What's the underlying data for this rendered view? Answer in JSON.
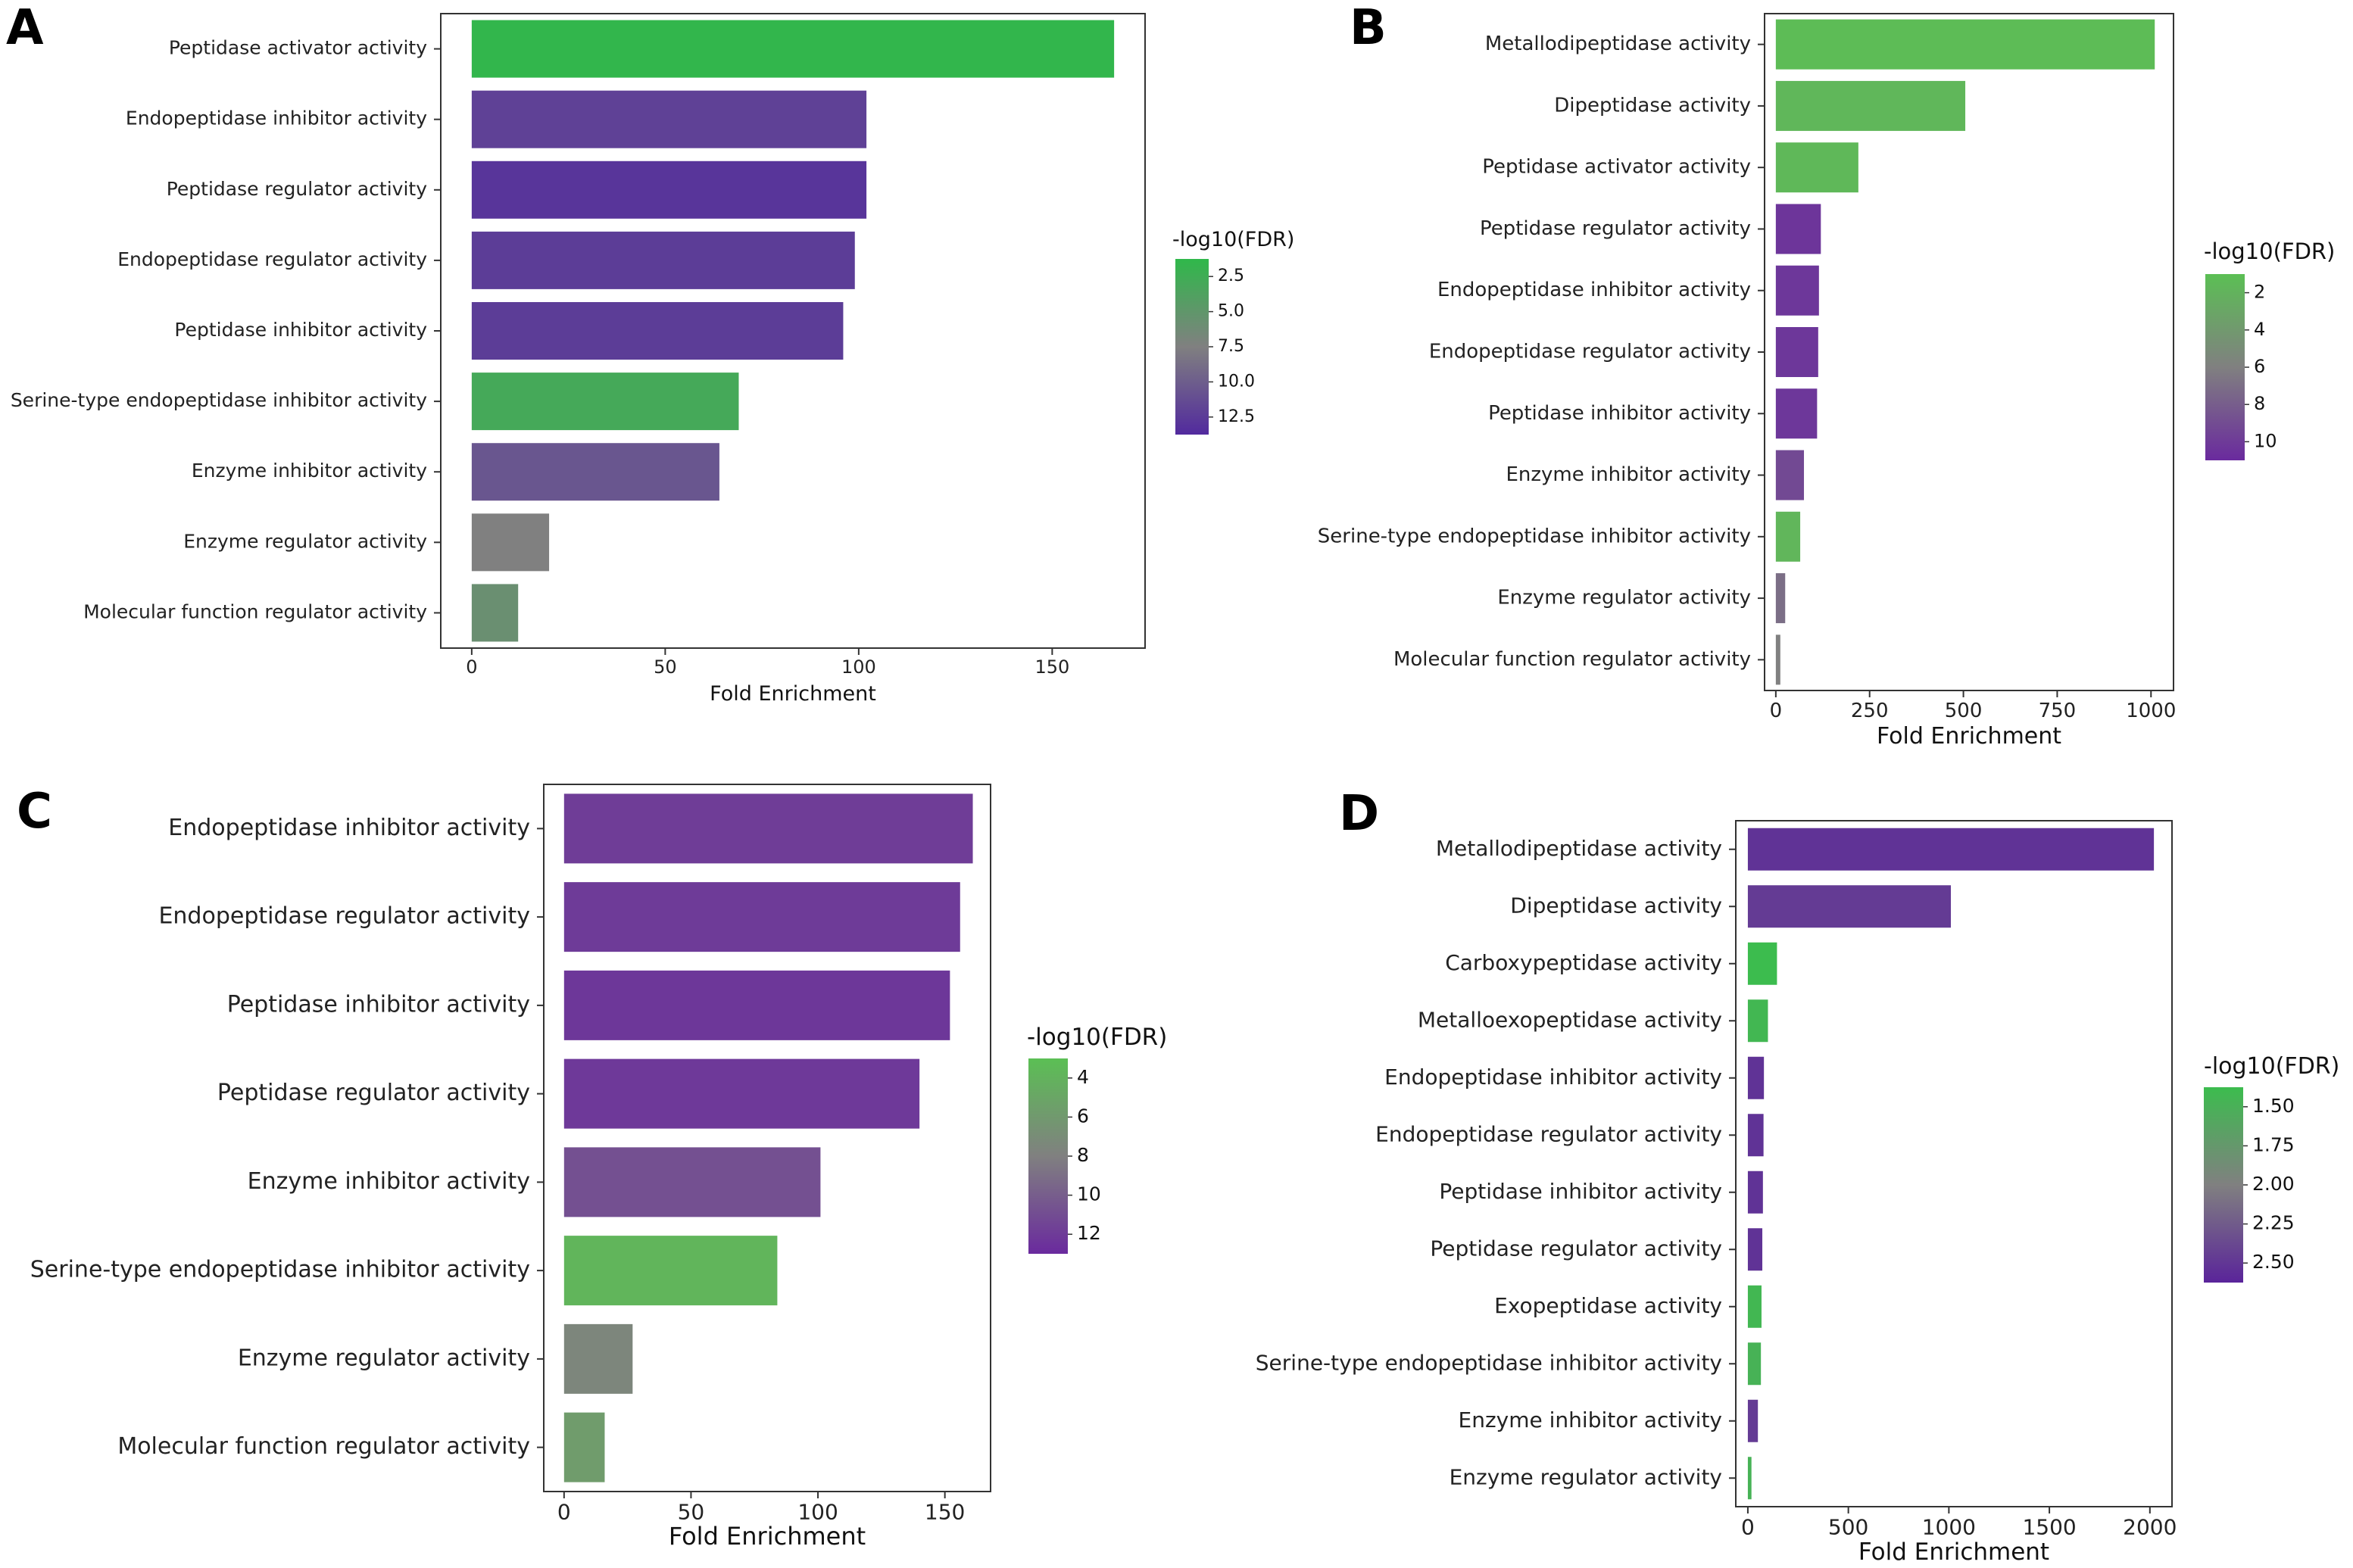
{
  "chart_data": [
    {
      "panel": "A",
      "type": "bar",
      "orientation": "horizontal",
      "title": "",
      "xlabel": "Fold Enrichment",
      "ylabel": "",
      "xlim": [
        -8,
        174
      ],
      "xticks": [
        0,
        50,
        100,
        150
      ],
      "categories": [
        "Peptidase activator activity",
        "Endopeptidase inhibitor activity",
        "Peptidase regulator activity",
        "Endopeptidase regulator activity",
        "Peptidase inhibitor activity",
        "Serine-type endopeptidase inhibitor activity",
        "Enzyme inhibitor activity",
        "Enzyme regulator activity",
        "Molecular function regulator activity"
      ],
      "values": [
        166,
        102,
        102,
        99,
        96,
        69,
        64,
        20,
        12
      ],
      "color_values": [
        2.2,
        11.5,
        12.3,
        11.8,
        11.8,
        3.5,
        10.2,
        7.5,
        6.0
      ],
      "colorbar": {
        "label": "-log10(FDR)",
        "ticks": [
          "2.5",
          "5.0",
          "7.5",
          "10.0",
          "12.5"
        ],
        "range": [
          2.0,
          13.0
        ]
      },
      "colors": {
        "low": "#2fb84a",
        "mid": "#808080",
        "high": "#522a9e"
      }
    },
    {
      "panel": "B",
      "type": "bar",
      "orientation": "horizontal",
      "title": "",
      "xlabel": "Fold Enrichment",
      "ylabel": "",
      "xlim": [
        -30,
        1060
      ],
      "xticks": [
        0,
        250,
        500,
        750,
        1000
      ],
      "categories": [
        "Metallodipeptidase activity",
        "Dipeptidase activity",
        "Peptidase activator activity",
        "Peptidase regulator activity",
        "Endopeptidase inhibitor activity",
        "Endopeptidase regulator activity",
        "Peptidase inhibitor activity",
        "Enzyme inhibitor activity",
        "Serine-type endopeptidase inhibitor activity",
        "Enzyme regulator activity",
        "Molecular function regulator activity"
      ],
      "values": [
        1010,
        505,
        220,
        120,
        115,
        113,
        110,
        75,
        65,
        25,
        12
      ],
      "color_values": [
        2.0,
        2.4,
        2.3,
        10.6,
        10.5,
        10.5,
        10.5,
        9.5,
        2.5,
        7.5,
        6.5
      ],
      "colorbar": {
        "label": "-log10(FDR)",
        "ticks": [
          "2",
          "4",
          "6",
          "8",
          "10"
        ],
        "range": [
          1.8,
          11.2
        ]
      },
      "colors": {
        "low": "#5bbf54",
        "mid": "#808080",
        "high": "#6a2a9e"
      }
    },
    {
      "panel": "C",
      "type": "bar",
      "orientation": "horizontal",
      "title": "",
      "xlabel": "Fold Enrichment",
      "ylabel": "",
      "xlim": [
        -8,
        168
      ],
      "xticks": [
        0,
        50,
        100,
        150
      ],
      "categories": [
        "Endopeptidase inhibitor activity",
        "Endopeptidase regulator activity",
        "Peptidase inhibitor activity",
        "Peptidase regulator activity",
        "Enzyme inhibitor activity",
        "Serine-type endopeptidase inhibitor activity",
        "Enzyme regulator activity",
        "Molecular function regulator activity"
      ],
      "values": [
        161,
        156,
        152,
        140,
        101,
        84,
        27,
        16
      ],
      "color_values": [
        11.5,
        11.6,
        11.8,
        11.7,
        10.5,
        4.2,
        7.6,
        6.0
      ],
      "colorbar": {
        "label": "-log10(FDR)",
        "ticks": [
          "4",
          "6",
          "8",
          "10",
          "12"
        ],
        "range": [
          3.5,
          12.5
        ]
      },
      "colors": {
        "low": "#5bbf54",
        "mid": "#808080",
        "high": "#6a2a9e"
      }
    },
    {
      "panel": "D",
      "type": "bar",
      "orientation": "horizontal",
      "title": "",
      "xlabel": "Fold Enrichment",
      "ylabel": "",
      "xlim": [
        -60,
        2110
      ],
      "xticks": [
        0,
        500,
        1000,
        1500,
        2000
      ],
      "categories": [
        "Metallodipeptidase activity",
        "Dipeptidase activity",
        "Carboxypeptidase activity",
        "Metalloexopeptidase activity",
        "Endopeptidase inhibitor activity",
        "Endopeptidase regulator activity",
        "Peptidase inhibitor activity",
        "Peptidase regulator activity",
        "Exopeptidase activity",
        "Serine-type endopeptidase inhibitor activity",
        "Enzyme inhibitor activity",
        "Enzyme regulator activity"
      ],
      "values": [
        2020,
        1010,
        145,
        100,
        80,
        78,
        75,
        72,
        68,
        65,
        50,
        18
      ],
      "color_values": [
        2.5,
        2.45,
        1.4,
        1.45,
        2.5,
        2.5,
        2.5,
        2.5,
        1.45,
        1.5,
        2.45,
        1.5
      ],
      "colorbar": {
        "label": "-log10(FDR)",
        "ticks": [
          "1.50",
          "1.75",
          "2.00",
          "2.25",
          "2.50"
        ],
        "range": [
          1.4,
          2.6
        ]
      },
      "colors": {
        "low": "#3cbc4e",
        "mid": "#808080",
        "high": "#5a249a"
      }
    }
  ]
}
